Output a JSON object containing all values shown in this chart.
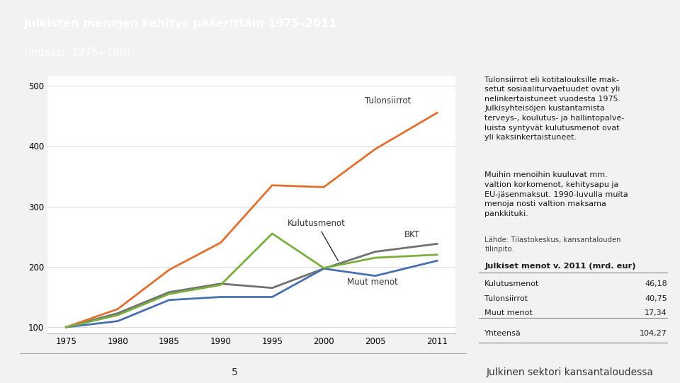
{
  "title_line1": "Julkisten menojen kehitys pääerittäin 1975–2011",
  "title_line2": "(indeksi, 1975=100)",
  "header_bg_color": "#E8834A",
  "header_text_color": "#FFFFFF",
  "years": [
    1975,
    1980,
    1985,
    1990,
    1995,
    2000,
    2005,
    2011
  ],
  "tulonsiirrot": [
    100,
    130,
    195,
    240,
    335,
    332,
    395,
    455
  ],
  "kulutusmenot": [
    100,
    120,
    155,
    170,
    255,
    198,
    215,
    220
  ],
  "bkt": [
    100,
    123,
    158,
    172,
    165,
    197,
    225,
    238
  ],
  "muut_menot": [
    100,
    110,
    145,
    150,
    150,
    197,
    185,
    210
  ],
  "color_tulonsiirrot": "#E07030",
  "color_kulutusmenot": "#7AAF3F",
  "color_bkt": "#707070",
  "color_muut_menot": "#4A6FAF",
  "line_width": 2.0,
  "ylim": [
    90,
    515
  ],
  "yticks": [
    100,
    200,
    300,
    400,
    500
  ],
  "xticks": [
    1975,
    1980,
    1985,
    1990,
    1995,
    2000,
    2005,
    2011
  ],
  "right_panel_bg": "#EBEBEB",
  "chart_bg": "#FFFFFF",
  "fig_bg": "#F2F2F2",
  "page_number": "5",
  "footer_right_text": "Julkinen sektori kansantaloudessa",
  "right_para1": "Tulonsiirrot eli kotitalouksille mak-\nsetut sosiaaliturvaetuudet ovat yli\nnelinkertaistuneet vuodesta 1975.\nJulkisyhteisöjen kustantamista\nterveys-, koulutus- ja hallintopalve-\nluista syntyvät kulutusmenot ovat\nyli kaksinkertaistuneet.",
  "right_para2": "Muihin menoihin kuuluvat mm.\nvaltion korkomenot, kehitysapu ja\nEU-jäsenmaksut. 1990-luvulla muita\nmenoja nosti valtion maksama\npankkituki.",
  "source_text": "Lähde: Tilastokeskus, kansantalouden\ntilinpito.",
  "table_title": "Julkiset menot v. 2011 (mrd. eur)",
  "table_labels": [
    "Kulutusmenot",
    "Tulonsiirrot",
    "Muut menot",
    "Yhteensä"
  ],
  "table_values": [
    "46,18",
    "40,75",
    "17,34",
    "104,27"
  ]
}
